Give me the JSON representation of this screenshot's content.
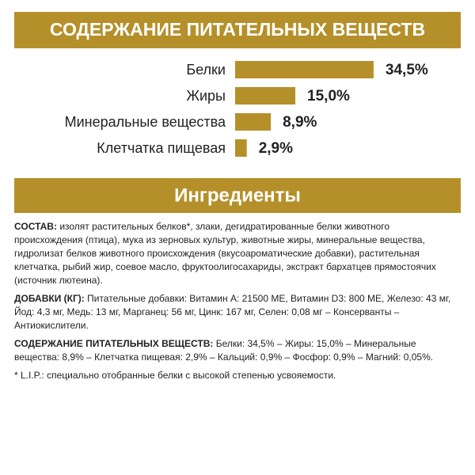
{
  "chart_data": {
    "type": "bar",
    "title": "СОДЕРЖАНИЕ ПИТАТЕЛЬНЫХ ВЕЩЕСТВ",
    "categories": [
      "Белки",
      "Жиры",
      "Минеральные вещества",
      "Клетчатка пищевая"
    ],
    "values": [
      34.5,
      15.0,
      8.9,
      2.9
    ],
    "value_labels": [
      "34,5%",
      "15,0%",
      "8,9%",
      "2,9%"
    ],
    "color": "#b5902a"
  },
  "ingredients": {
    "title": "Ингредиенты",
    "paragraphs": [
      {
        "lead": "СОСТАВ:",
        "text": " изолят растительных белков*, злаки, дегидратированные белки животного происхождения (птица), мука из зерновых культур, животные жиры, минеральные вещества, гидролизат белков животного происхождения (вкусоароматические добавки), растительная клетчатка, рыбий жир, соевое масло, фруктоолигосахариды, экстракт бархатцев прямостоячих (источник лютеина)."
      },
      {
        "lead": "ДОБАВКИ (КГ):",
        "text": " Питательные добавки: Витамин A: 21500 МЕ, Витамин D3: 800 МЕ, Железо: 43 мг, Йод: 4,3 мг, Медь: 13 мг, Марганец: 56 мг, Цинк: 167 мг, Селен: 0,08 мг – Консерванты – Антиокислители."
      },
      {
        "lead": "СОДЕРЖАНИЕ ПИТАТЕЛЬНЫХ ВЕЩЕСТВ:",
        "text": " Белки: 34,5% – Жиры: 15,0% – Минеральные вещества: 8,9% – Клетчатка пищевая: 2,9% – Кальций: 0,9% – Фосфор: 0,9% – Магний: 0,05%."
      },
      {
        "text": "* L.I.P.: специально отобранные белки с высокой степенью усвояемости."
      }
    ]
  }
}
